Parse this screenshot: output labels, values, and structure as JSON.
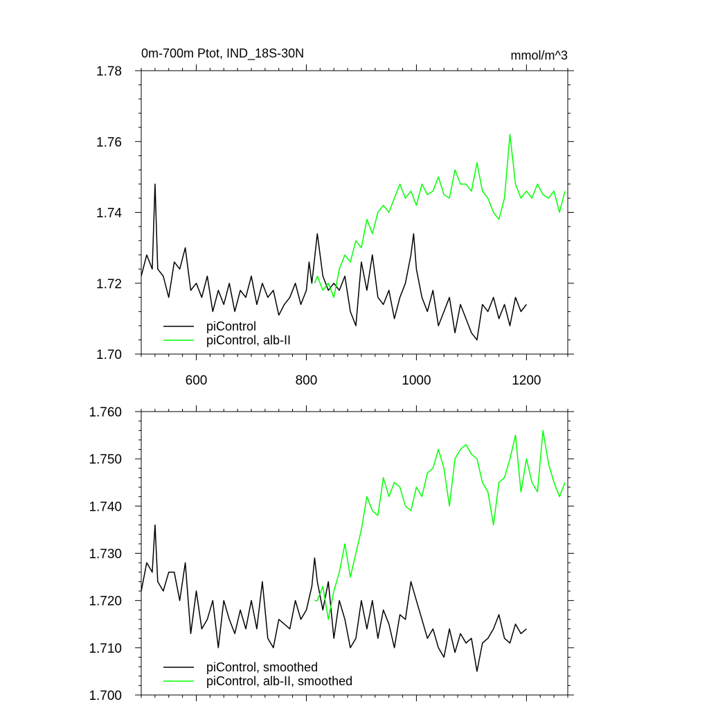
{
  "figure": {
    "title_left": "0m-700m Ptot, IND_18S-30N",
    "title_right": "mmol/m^3"
  },
  "chart_data": [
    {
      "type": "line",
      "title": "0m-700m Ptot, IND_18S-30N",
      "units": "mmol/m^3",
      "xlim": [
        500,
        1275
      ],
      "ylim": [
        1.7,
        1.78
      ],
      "xticks": [
        600,
        800,
        1000,
        1200
      ],
      "xtick_labels": [
        "600",
        "800",
        "1000",
        "1200"
      ],
      "yticks": [
        1.7,
        1.72,
        1.74,
        1.76,
        1.78
      ],
      "ytick_labels": [
        "1.70",
        "1.72",
        "1.74",
        "1.76",
        "1.78"
      ],
      "grid": false,
      "legend_placement": "bottom-left",
      "series": [
        {
          "name": "piControl",
          "color": "#000000",
          "x": [
            500,
            510,
            520,
            525,
            530,
            540,
            550,
            560,
            570,
            580,
            590,
            600,
            610,
            620,
            630,
            640,
            650,
            660,
            670,
            680,
            690,
            700,
            710,
            720,
            730,
            740,
            750,
            760,
            770,
            780,
            790,
            800,
            805,
            810,
            820,
            830,
            840,
            850,
            860,
            870,
            880,
            890,
            900,
            910,
            920,
            930,
            940,
            950,
            960,
            970,
            980,
            990,
            995,
            1000,
            1010,
            1020,
            1030,
            1040,
            1050,
            1060,
            1070,
            1080,
            1090,
            1100,
            1110,
            1120,
            1130,
            1140,
            1150,
            1160,
            1170,
            1180,
            1190,
            1200
          ],
          "values": [
            1.722,
            1.728,
            1.724,
            1.748,
            1.724,
            1.722,
            1.716,
            1.726,
            1.724,
            1.73,
            1.718,
            1.72,
            1.716,
            1.722,
            1.712,
            1.718,
            1.714,
            1.72,
            1.712,
            1.718,
            1.716,
            1.722,
            1.714,
            1.72,
            1.716,
            1.718,
            1.711,
            1.714,
            1.716,
            1.72,
            1.714,
            1.718,
            1.726,
            1.72,
            1.734,
            1.722,
            1.718,
            1.72,
            1.718,
            1.722,
            1.712,
            1.708,
            1.726,
            1.718,
            1.728,
            1.716,
            1.714,
            1.718,
            1.71,
            1.716,
            1.72,
            1.728,
            1.734,
            1.724,
            1.716,
            1.712,
            1.718,
            1.708,
            1.712,
            1.716,
            1.706,
            1.714,
            1.71,
            1.706,
            1.704,
            1.714,
            1.712,
            1.716,
            1.71,
            1.714,
            1.708,
            1.716,
            1.712,
            1.714
          ]
        },
        {
          "name": "piControl, alb-II",
          "color": "#00ff00",
          "x": [
            815,
            820,
            830,
            840,
            850,
            860,
            870,
            880,
            890,
            900,
            910,
            920,
            930,
            940,
            950,
            960,
            970,
            980,
            990,
            1000,
            1010,
            1020,
            1030,
            1040,
            1050,
            1060,
            1070,
            1080,
            1090,
            1100,
            1110,
            1120,
            1130,
            1140,
            1150,
            1160,
            1170,
            1180,
            1190,
            1200,
            1210,
            1220,
            1230,
            1240,
            1250,
            1260,
            1270
          ],
          "values": [
            1.72,
            1.722,
            1.718,
            1.72,
            1.716,
            1.724,
            1.728,
            1.726,
            1.732,
            1.73,
            1.738,
            1.734,
            1.74,
            1.742,
            1.74,
            1.744,
            1.748,
            1.744,
            1.746,
            1.742,
            1.748,
            1.745,
            1.746,
            1.75,
            1.745,
            1.744,
            1.752,
            1.748,
            1.748,
            1.746,
            1.754,
            1.746,
            1.744,
            1.74,
            1.738,
            1.744,
            1.762,
            1.748,
            1.744,
            1.746,
            1.744,
            1.748,
            1.745,
            1.744,
            1.746,
            1.74,
            1.746
          ]
        }
      ]
    },
    {
      "type": "line",
      "xlim": [
        500,
        1275
      ],
      "ylim": [
        1.7,
        1.76
      ],
      "xticks": [
        600,
        800,
        1000,
        1200
      ],
      "yticks": [
        1.7,
        1.71,
        1.72,
        1.73,
        1.74,
        1.75,
        1.76
      ],
      "ytick_labels": [
        "1.700",
        "1.710",
        "1.720",
        "1.730",
        "1.740",
        "1.750",
        "1.760"
      ],
      "grid": false,
      "legend_placement": "bottom-left",
      "series": [
        {
          "name": "piControl, smoothed",
          "color": "#000000",
          "x": [
            500,
            510,
            520,
            525,
            530,
            540,
            550,
            560,
            570,
            580,
            590,
            600,
            610,
            620,
            630,
            640,
            650,
            660,
            670,
            680,
            690,
            700,
            710,
            720,
            730,
            740,
            750,
            760,
            770,
            780,
            790,
            800,
            810,
            815,
            820,
            830,
            840,
            850,
            860,
            870,
            880,
            890,
            900,
            910,
            920,
            930,
            940,
            950,
            960,
            970,
            980,
            990,
            1000,
            1010,
            1020,
            1030,
            1040,
            1050,
            1060,
            1070,
            1080,
            1090,
            1100,
            1110,
            1120,
            1130,
            1140,
            1150,
            1160,
            1170,
            1180,
            1190,
            1200
          ],
          "values": [
            1.722,
            1.728,
            1.726,
            1.736,
            1.724,
            1.722,
            1.726,
            1.726,
            1.72,
            1.728,
            1.713,
            1.722,
            1.714,
            1.716,
            1.72,
            1.71,
            1.72,
            1.716,
            1.713,
            1.718,
            1.714,
            1.72,
            1.714,
            1.724,
            1.712,
            1.71,
            1.716,
            1.715,
            1.714,
            1.72,
            1.716,
            1.718,
            1.723,
            1.729,
            1.724,
            1.718,
            1.724,
            1.712,
            1.72,
            1.716,
            1.71,
            1.712,
            1.72,
            1.714,
            1.72,
            1.712,
            1.718,
            1.715,
            1.71,
            1.717,
            1.716,
            1.724,
            1.72,
            1.716,
            1.712,
            1.714,
            1.71,
            1.708,
            1.714,
            1.709,
            1.713,
            1.711,
            1.712,
            1.705,
            1.711,
            1.712,
            1.714,
            1.717,
            1.712,
            1.711,
            1.715,
            1.713,
            1.714
          ]
        },
        {
          "name": "piControl, alb-II, smoothed",
          "color": "#00ff00",
          "x": [
            815,
            820,
            830,
            840,
            850,
            860,
            870,
            880,
            890,
            900,
            910,
            920,
            930,
            940,
            950,
            960,
            970,
            980,
            990,
            1000,
            1010,
            1020,
            1030,
            1040,
            1050,
            1060,
            1070,
            1080,
            1090,
            1100,
            1110,
            1120,
            1130,
            1140,
            1150,
            1160,
            1170,
            1180,
            1190,
            1200,
            1210,
            1220,
            1230,
            1240,
            1250,
            1260,
            1270
          ],
          "values": [
            1.72,
            1.72,
            1.723,
            1.716,
            1.722,
            1.726,
            1.732,
            1.725,
            1.73,
            1.735,
            1.742,
            1.739,
            1.738,
            1.746,
            1.742,
            1.745,
            1.744,
            1.74,
            1.739,
            1.744,
            1.742,
            1.747,
            1.748,
            1.752,
            1.748,
            1.74,
            1.75,
            1.752,
            1.753,
            1.751,
            1.75,
            1.745,
            1.743,
            1.736,
            1.745,
            1.746,
            1.75,
            1.755,
            1.743,
            1.75,
            1.745,
            1.743,
            1.756,
            1.749,
            1.745,
            1.742,
            1.745
          ]
        }
      ]
    }
  ]
}
